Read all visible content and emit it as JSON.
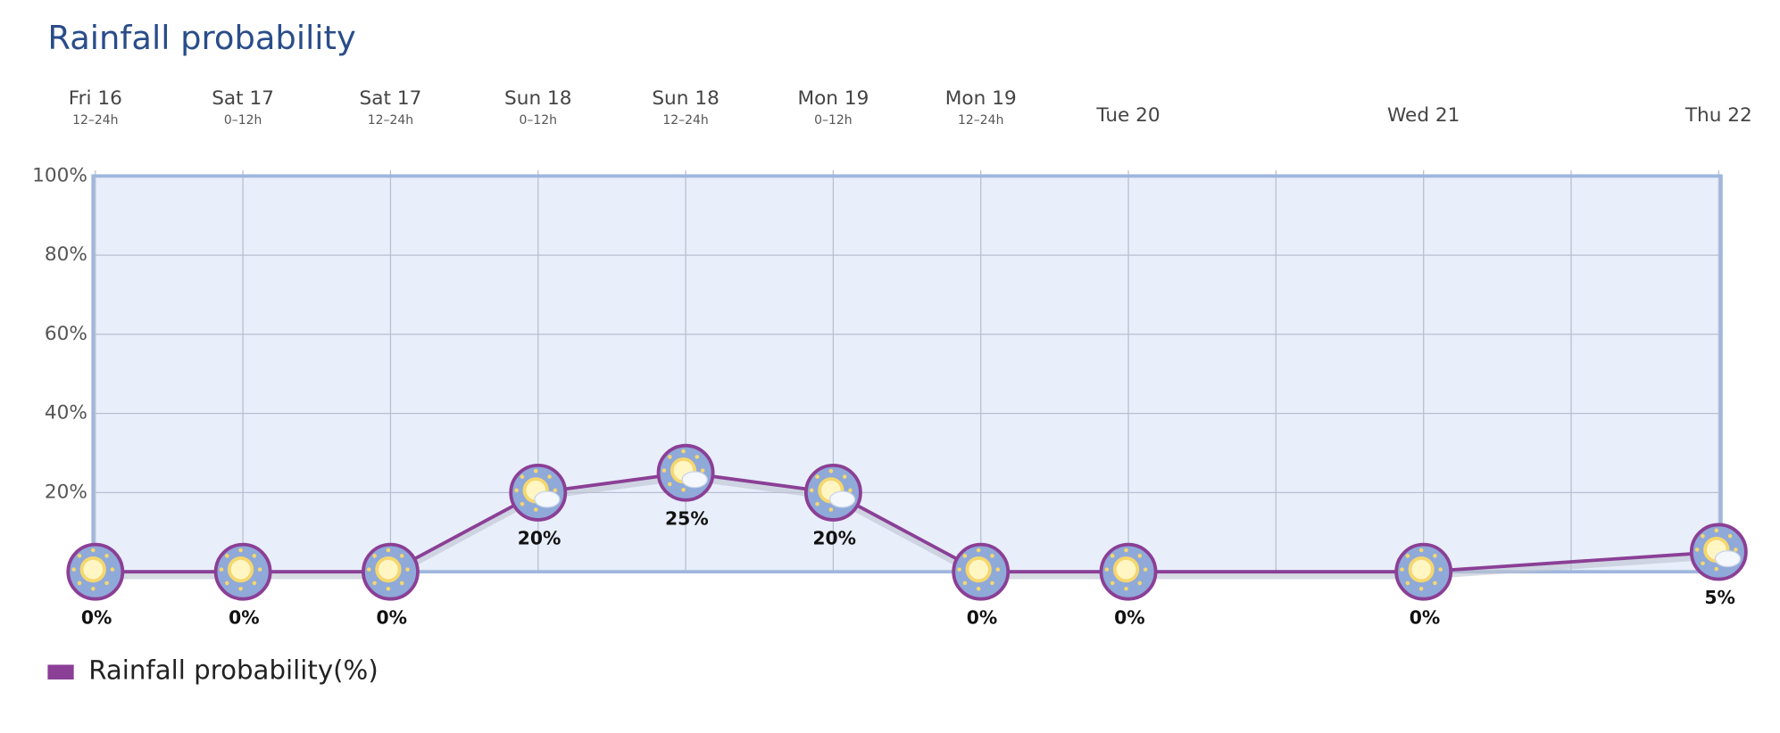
{
  "chart_data": {
    "type": "line",
    "title": "Rainfall probability",
    "categories": [
      "Fri 16",
      "Sat 17",
      "Sat 17",
      "Sun 18",
      "Sun 18",
      "Mon 19",
      "Mon 19",
      "Tue 20",
      null,
      "Wed 21",
      null,
      "Thu 22"
    ],
    "subcategories": [
      "12–24h",
      "0–12h",
      "12–24h",
      "0–12h",
      "12–24h",
      "0–12h",
      "12–24h",
      null,
      null,
      null,
      null,
      null
    ],
    "series": [
      {
        "name": "Rainfall probability(%)",
        "color": "#8b3f96",
        "values": [
          0,
          0,
          0,
          20,
          25,
          20,
          0,
          0,
          null,
          0,
          null,
          5
        ],
        "value_labels": [
          "0%",
          "0%",
          "0%",
          "20%",
          "25%",
          "20%",
          "0%",
          "0%",
          null,
          "0%",
          null,
          "5%"
        ]
      }
    ],
    "ylim": [
      0,
      100
    ],
    "yticks": [
      0,
      {
        "value": 20,
        "label": "20%"
      },
      {
        "value": 40,
        "label": "40%"
      },
      {
        "value": 60,
        "label": "60%"
      },
      {
        "value": 80,
        "label": "80%"
      },
      {
        "value": 100,
        "label": "100%"
      }
    ],
    "grid": true,
    "connect_gaps": true,
    "legend": "bottom-left"
  }
}
